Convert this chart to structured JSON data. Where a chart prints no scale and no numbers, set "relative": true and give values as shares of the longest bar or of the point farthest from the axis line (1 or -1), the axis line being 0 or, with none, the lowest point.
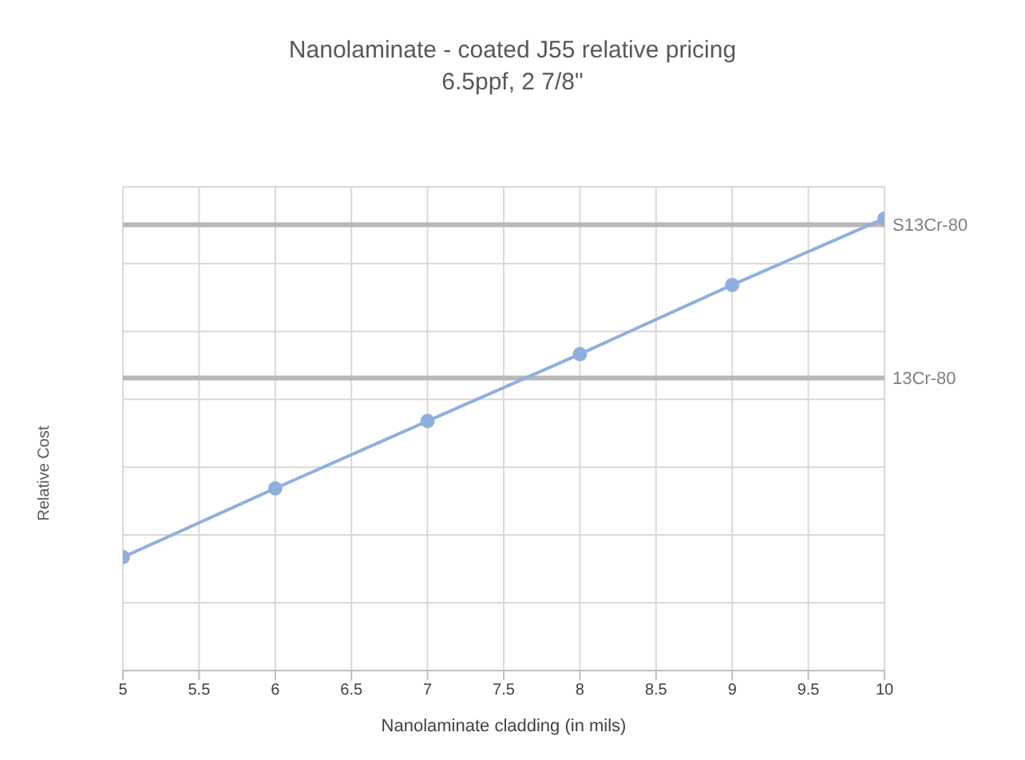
{
  "chart_data": {
    "type": "line",
    "title": "Nanolaminate - coated J55 relative pricing",
    "subtitle": "6.5ppf, 2 7/8\"",
    "xlabel": "Nanolaminate cladding (in mils)",
    "ylabel": "Relative Cost",
    "relative": true,
    "x": [
      5,
      6,
      7,
      8,
      9,
      10
    ],
    "series": [
      {
        "color": "#8eb0dc",
        "values": [
          0.251,
          0.403,
          0.552,
          0.7,
          0.853,
          1
        ]
      }
    ],
    "xlim": [
      5,
      10
    ],
    "xticks": [
      5,
      5.5,
      6,
      6.5,
      7,
      7.5,
      8,
      8.5,
      9,
      9.5,
      10
    ],
    "ref_lines": [
      {
        "axis": "y",
        "value": 0.986,
        "label": "S13Cr-80",
        "color": "#b8b8b8"
      },
      {
        "axis": "y",
        "value": 0.647,
        "label": "13Cr-80",
        "color": "#b8b8b8"
      }
    ],
    "grid": true,
    "marker": "circle",
    "line_style": "solid",
    "legend": false
  }
}
